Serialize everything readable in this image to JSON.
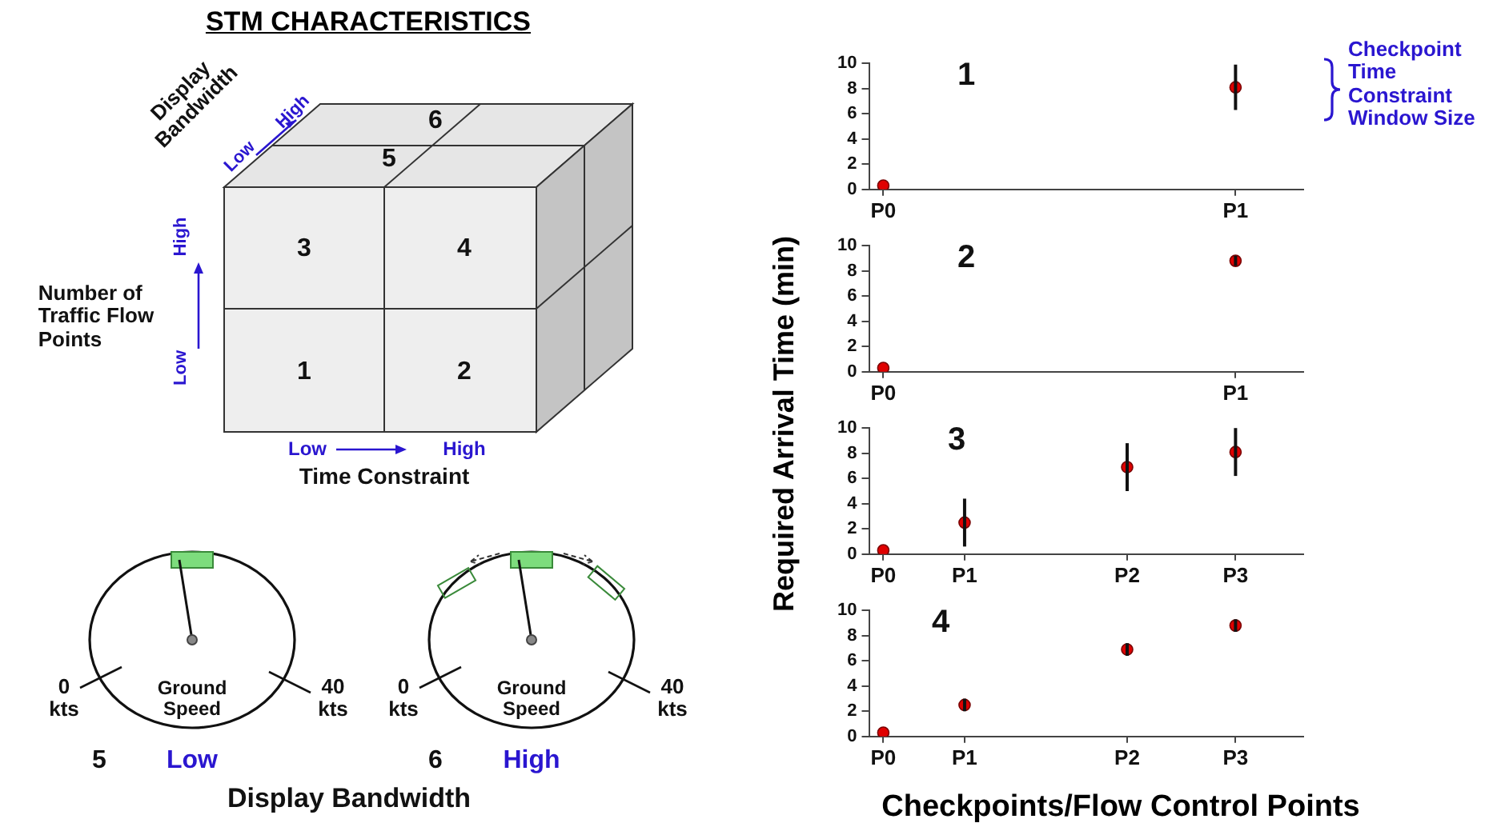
{
  "chart_data": [
    {
      "type": "other",
      "title": "STM CHARACTERISTICS",
      "annotations": [
        "Display\nBandwidth",
        "Low",
        "High",
        "Number of\nTraffic Flow\nPoints",
        "Low",
        "High",
        "Low",
        "High",
        "Time Constraint",
        "1",
        "2",
        "3",
        "4",
        "5",
        "6",
        "0\nkts",
        "Ground\nSpeed",
        "40\nkts",
        "0\nkts",
        "Ground\nSpeed",
        "40\nkts",
        "5",
        "Low",
        "6",
        "High",
        "Display Bandwidth"
      ]
    },
    {
      "type": "scatter",
      "title": "1",
      "annotations": [
        "Checkpoint\nTime\nConstraint\nWindow Size"
      ],
      "categories": [
        "P0",
        null,
        null,
        null,
        null,
        null,
        null,
        null,
        null,
        null,
        null,
        null,
        null,
        "P1",
        null,
        null
      ],
      "ylim": [
        0,
        10
      ],
      "yticks": [
        0,
        2,
        4,
        6,
        8,
        10
      ],
      "marker": "circle",
      "series": [
        {
          "color": "#e00000",
          "values": [
            0.3,
            null,
            null,
            null,
            null,
            null,
            null,
            null,
            null,
            null,
            null,
            null,
            null,
            8.1,
            null,
            null
          ],
          "errors": [
            null,
            null,
            null,
            null,
            null,
            null,
            null,
            null,
            null,
            null,
            null,
            null,
            null,
            1.8,
            null,
            null
          ]
        }
      ]
    },
    {
      "type": "scatter",
      "title": "2",
      "ylabel": "Required Arrival Time (min)",
      "categories": [
        "P0",
        null,
        null,
        null,
        null,
        null,
        null,
        null,
        null,
        null,
        null,
        null,
        null,
        "P1",
        null,
        null
      ],
      "ylim": [
        0,
        10
      ],
      "yticks": [
        0,
        2,
        4,
        6,
        8,
        10
      ],
      "marker": "circle",
      "series": [
        {
          "color": "#e00000",
          "values": [
            0.3,
            null,
            null,
            null,
            null,
            null,
            null,
            null,
            null,
            null,
            null,
            null,
            null,
            8.8,
            null,
            null
          ],
          "errors": [
            null,
            null,
            null,
            null,
            null,
            null,
            null,
            null,
            null,
            null,
            null,
            null,
            null,
            0.4,
            null,
            null
          ]
        }
      ]
    },
    {
      "type": "scatter",
      "title": "3",
      "categories": [
        "P0",
        null,
        null,
        "P1",
        null,
        null,
        null,
        null,
        null,
        "P2",
        null,
        null,
        null,
        "P3",
        null,
        null
      ],
      "ylim": [
        0,
        10
      ],
      "yticks": [
        0,
        2,
        4,
        6,
        8,
        10
      ],
      "marker": "circle",
      "series": [
        {
          "color": "#e00000",
          "values": [
            0.3,
            null,
            null,
            2.5,
            null,
            null,
            null,
            null,
            null,
            6.9,
            null,
            null,
            null,
            8.1,
            null,
            null
          ],
          "errors": [
            null,
            null,
            null,
            1.9,
            null,
            null,
            null,
            null,
            null,
            1.9,
            null,
            null,
            null,
            1.9,
            null,
            null
          ]
        }
      ]
    },
    {
      "type": "scatter",
      "title": "4",
      "xlabel": "Checkpoints/Flow Control Points",
      "categories": [
        "P0",
        null,
        null,
        "P1",
        null,
        null,
        null,
        null,
        null,
        "P2",
        null,
        null,
        null,
        "P3",
        null,
        null
      ],
      "ylim": [
        0,
        10
      ],
      "yticks": [
        0,
        2,
        4,
        6,
        8,
        10
      ],
      "marker": "circle",
      "series": [
        {
          "color": "#e00000",
          "values": [
            0.3,
            null,
            null,
            2.5,
            null,
            null,
            null,
            null,
            null,
            6.9,
            null,
            null,
            null,
            8.8,
            null,
            null
          ],
          "errors": [
            null,
            null,
            null,
            0.5,
            null,
            null,
            null,
            null,
            null,
            0.5,
            null,
            null,
            null,
            0.5,
            null,
            null
          ]
        }
      ]
    }
  ]
}
